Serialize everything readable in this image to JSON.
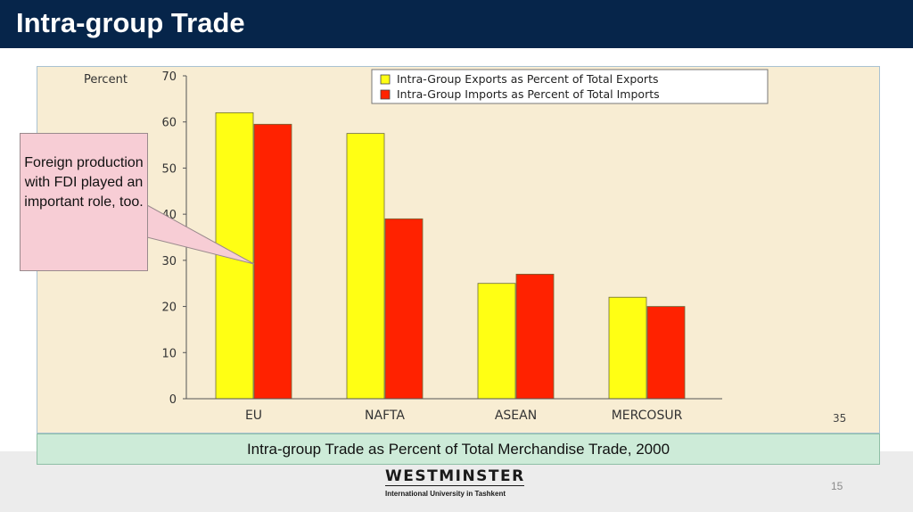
{
  "header": {
    "title": "Intra-group Trade"
  },
  "colors": {
    "header_bg": "#06254a",
    "exports": "#ffff14",
    "imports": "#ff2200",
    "chart_bg": "#f8edd3",
    "caption_bg": "#cdebd8",
    "callout_bg": "#f7cdd5"
  },
  "chart_data": {
    "type": "bar",
    "ylabel": "Percent",
    "ylim": [
      0,
      70
    ],
    "yticks": [
      "0",
      "10",
      "20",
      "30",
      "40",
      "50",
      "60",
      "70"
    ],
    "categories": [
      "EU",
      "NAFTA",
      "ASEAN",
      "MERCOSUR"
    ],
    "series": [
      {
        "name": "Intra-Group Exports as Percent of Total Exports",
        "values": [
          62,
          57.5,
          25,
          22
        ],
        "color": "#ffff14"
      },
      {
        "name": "Intra-Group Imports as Percent of Total Imports",
        "values": [
          59.5,
          39,
          27,
          20
        ],
        "color": "#ff2200"
      }
    ],
    "legend_position": "top-right",
    "grid": false,
    "slide_ref": "35"
  },
  "callout": {
    "text": "Foreign production with FDI played an important role, too."
  },
  "caption": "Intra-group Trade as Percent of Total Merchandise Trade, 2000",
  "footer": {
    "logo_name": "WESTMINSTER",
    "logo_sub": "International University in Tashkent",
    "page_number": "15"
  }
}
